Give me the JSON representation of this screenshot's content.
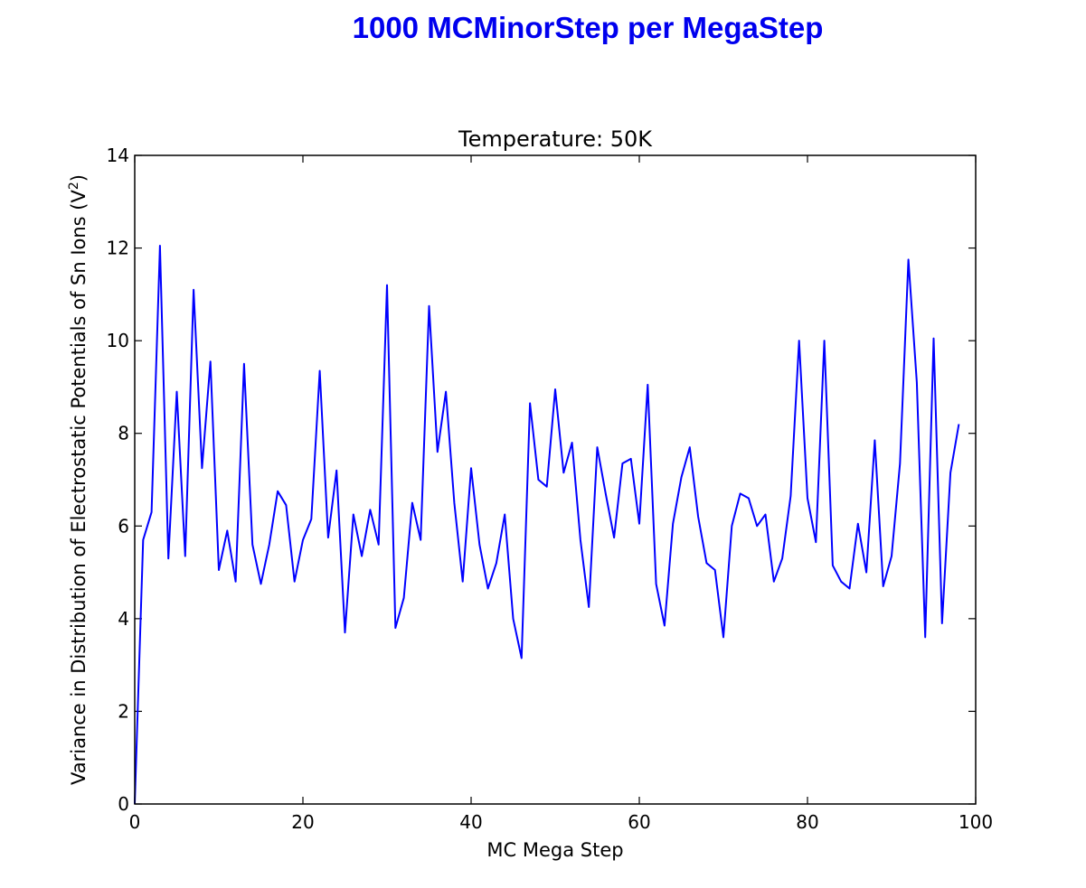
{
  "page": {
    "heading": "1000 MCMinorStep per MegaStep"
  },
  "chart_data": {
    "type": "line",
    "title": "Temperature: 50K",
    "xlabel": "MC Mega Step",
    "ylabel": "Variance in Distribution of Electrostatic Potentials of Sn Ions (V²)",
    "xlim": [
      0,
      100
    ],
    "ylim": [
      0,
      14
    ],
    "xticks": [
      0,
      20,
      40,
      60,
      80,
      100
    ],
    "yticks": [
      0,
      2,
      4,
      6,
      8,
      10,
      12,
      14
    ],
    "grid": false,
    "line_color": "#0000ff",
    "series": [
      {
        "x": [
          0,
          1,
          2,
          3,
          4,
          5,
          6,
          7,
          8,
          9,
          10,
          11,
          12,
          13,
          14,
          15,
          16,
          17,
          18,
          19,
          20,
          21,
          22,
          23,
          24,
          25,
          26,
          27,
          28,
          29,
          30,
          31,
          32,
          33,
          34,
          35,
          36,
          37,
          38,
          39,
          40,
          41,
          42,
          43,
          44,
          45,
          46,
          47,
          48,
          49,
          50,
          51,
          52,
          53,
          54,
          55,
          56,
          57,
          58,
          59,
          60,
          61,
          62,
          63,
          64,
          65,
          66,
          67,
          68,
          69,
          70,
          71,
          72,
          73,
          74,
          75,
          76,
          77,
          78,
          79,
          80,
          81,
          82,
          83,
          84,
          85,
          86,
          87,
          88,
          89,
          90,
          91,
          92,
          93,
          94,
          95,
          96,
          97,
          98
        ],
        "values": [
          0.0,
          5.7,
          6.3,
          12.05,
          5.3,
          8.9,
          5.35,
          11.1,
          7.25,
          9.55,
          5.05,
          5.9,
          4.8,
          9.5,
          5.6,
          4.75,
          5.6,
          6.75,
          6.45,
          4.8,
          5.7,
          6.15,
          9.35,
          5.75,
          7.2,
          3.7,
          6.25,
          5.35,
          6.35,
          5.6,
          11.2,
          3.8,
          4.45,
          6.5,
          5.7,
          10.75,
          7.6,
          8.9,
          6.5,
          4.8,
          7.25,
          5.6,
          4.65,
          5.2,
          6.25,
          4.0,
          3.15,
          8.65,
          7.0,
          6.85,
          8.95,
          7.15,
          7.8,
          5.7,
          4.25,
          7.7,
          6.7,
          5.75,
          7.35,
          7.45,
          6.05,
          9.05,
          4.75,
          3.85,
          6.05,
          7.05,
          7.7,
          6.2,
          5.2,
          5.05,
          3.6,
          6.0,
          6.7,
          6.6,
          6.0,
          6.25,
          4.8,
          5.3,
          6.65,
          10.0,
          6.6,
          5.65,
          10.0,
          5.15,
          4.8,
          4.65,
          6.05,
          5.0,
          7.85,
          4.7,
          5.35,
          7.35,
          11.75,
          9.1,
          3.6,
          10.05,
          3.9,
          7.15,
          8.2
        ]
      }
    ]
  }
}
